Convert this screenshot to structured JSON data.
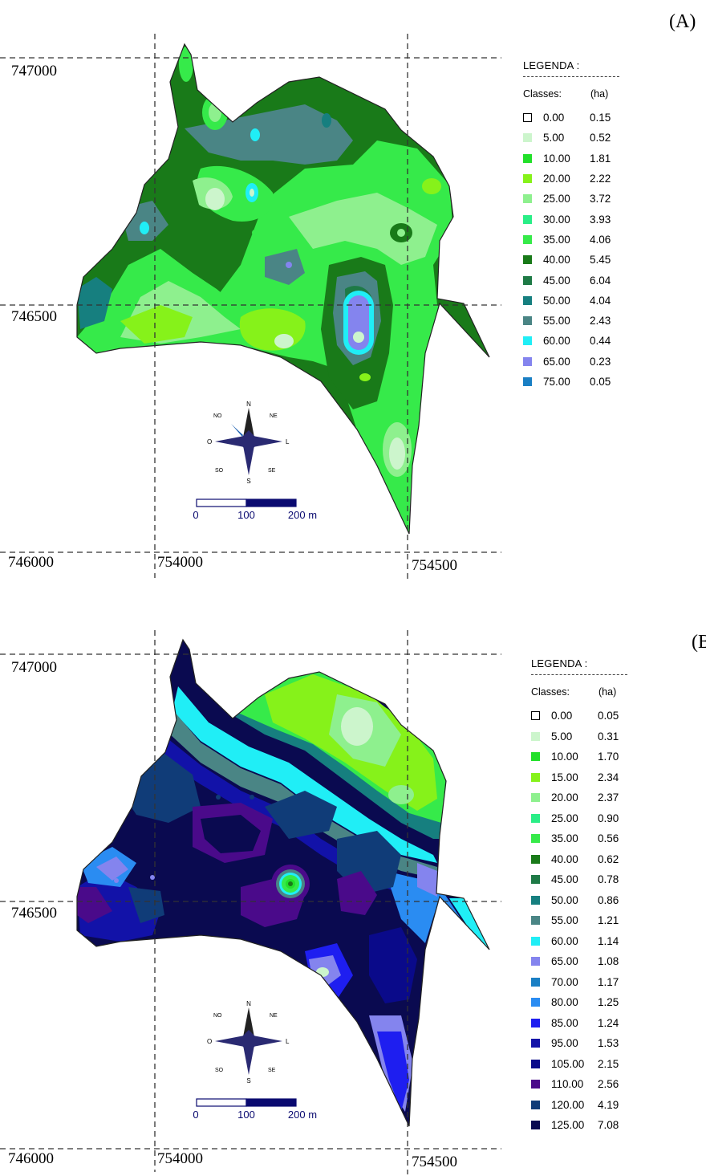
{
  "maps": [
    {
      "panel_label": "(A)",
      "coordinates": {
        "north_top": "747000",
        "north_mid": "746500",
        "north_bottom": "746000",
        "east_left": "754000",
        "east_right": "754500"
      },
      "compass": {
        "n": "N",
        "s": "S",
        "e": "L",
        "w": "O",
        "ne": "NE",
        "nw": "NO",
        "se": "SE",
        "sw": "SO"
      },
      "scale_bar": {
        "labels": [
          "0",
          "100",
          "200 m"
        ]
      },
      "legend": {
        "title": "LEGENDA :",
        "col_classes": "Classes:",
        "col_area": "(ha)",
        "items": [
          {
            "cls": "0.00",
            "ha": "0.15",
            "color": "#ffffff"
          },
          {
            "cls": "5.00",
            "ha": "0.52",
            "color": "#ccf5cc"
          },
          {
            "cls": "10.00",
            "ha": "1.81",
            "color": "#22e02a"
          },
          {
            "cls": "20.00",
            "ha": "2.22",
            "color": "#86f21a"
          },
          {
            "cls": "25.00",
            "ha": "3.72",
            "color": "#8ef08e"
          },
          {
            "cls": "30.00",
            "ha": "3.93",
            "color": "#2aee86"
          },
          {
            "cls": "35.00",
            "ha": "4.06",
            "color": "#36ea4a"
          },
          {
            "cls": "40.00",
            "ha": "5.45",
            "color": "#197a19"
          },
          {
            "cls": "45.00",
            "ha": "6.04",
            "color": "#1e7a46"
          },
          {
            "cls": "50.00",
            "ha": "4.04",
            "color": "#167f7f"
          },
          {
            "cls": "55.00",
            "ha": "2.43",
            "color": "#4a8585"
          },
          {
            "cls": "60.00",
            "ha": "0.44",
            "color": "#20eef6"
          },
          {
            "cls": "65.00",
            "ha": "0.23",
            "color": "#8484ee"
          },
          {
            "cls": "75.00",
            "ha": "0.05",
            "color": "#1a7fc4"
          }
        ]
      }
    },
    {
      "panel_label": "(B",
      "coordinates": {
        "north_top": "747000",
        "north_mid": "746500",
        "north_bottom": "746000",
        "east_left": "754000",
        "east_right": "754500"
      },
      "compass": {
        "n": "N",
        "s": "S",
        "e": "L",
        "w": "O",
        "ne": "NE",
        "nw": "NO",
        "se": "SE",
        "sw": "SO"
      },
      "scale_bar": {
        "labels": [
          "0",
          "100",
          "200 m"
        ]
      },
      "legend": {
        "title": "LEGENDA :",
        "col_classes": "Classes:",
        "col_area": "(ha)",
        "items": [
          {
            "cls": "0.00",
            "ha": "0.05",
            "color": "#ffffff"
          },
          {
            "cls": "5.00",
            "ha": "0.31",
            "color": "#ccf5cc"
          },
          {
            "cls": "10.00",
            "ha": "1.70",
            "color": "#22e02a"
          },
          {
            "cls": "15.00",
            "ha": "2.34",
            "color": "#86f21a"
          },
          {
            "cls": "20.00",
            "ha": "2.37",
            "color": "#8ef08e"
          },
          {
            "cls": "25.00",
            "ha": "0.90",
            "color": "#2aee86"
          },
          {
            "cls": "35.00",
            "ha": "0.56",
            "color": "#36ea4a"
          },
          {
            "cls": "40.00",
            "ha": "0.62",
            "color": "#197a19"
          },
          {
            "cls": "45.00",
            "ha": "0.78",
            "color": "#1e7a46"
          },
          {
            "cls": "50.00",
            "ha": "0.86",
            "color": "#167f7f"
          },
          {
            "cls": "55.00",
            "ha": "1.21",
            "color": "#4a8585"
          },
          {
            "cls": "60.00",
            "ha": "1.14",
            "color": "#20eef6"
          },
          {
            "cls": "65.00",
            "ha": "1.08",
            "color": "#8484ee"
          },
          {
            "cls": "70.00",
            "ha": "1.17",
            "color": "#1a7fc4"
          },
          {
            "cls": "80.00",
            "ha": "1.25",
            "color": "#2a8cf2"
          },
          {
            "cls": "85.00",
            "ha": "1.24",
            "color": "#1e1ef0"
          },
          {
            "cls": "95.00",
            "ha": "1.53",
            "color": "#1212a8"
          },
          {
            "cls": "105.00",
            "ha": "2.15",
            "color": "#0a0a8a"
          },
          {
            "cls": "110.00",
            "ha": "2.56",
            "color": "#4a0a8a"
          },
          {
            "cls": "120.00",
            "ha": "4.19",
            "color": "#103c78"
          },
          {
            "cls": "125.00",
            "ha": "7.08",
            "color": "#0a0a50"
          }
        ]
      }
    }
  ]
}
